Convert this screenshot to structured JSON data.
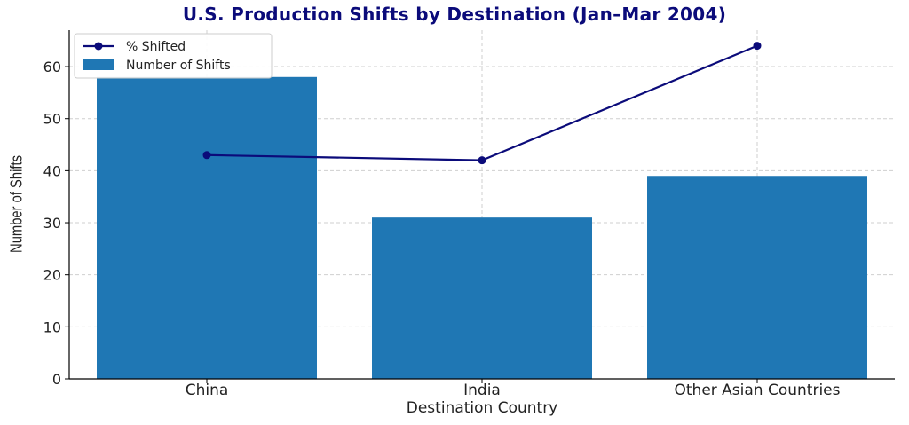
{
  "chart_data": {
    "type": "bar",
    "title": "U.S. Production Shifts by Destination (Jan–Mar 2004)",
    "xlabel": "Destination Country",
    "ylabel": "Number of Shifts",
    "categories": [
      "China",
      "India",
      "Other Asian Countries"
    ],
    "series": [
      {
        "name": "Number of Shifts",
        "type": "bar",
        "values": [
          58,
          31,
          39
        ],
        "color": "#1f77b4"
      },
      {
        "name": "% Shifted",
        "type": "line",
        "values": [
          43,
          42,
          64
        ],
        "color": "#0b0b7a"
      }
    ],
    "ylim": [
      0,
      67
    ],
    "yticks": [
      0,
      10,
      20,
      30,
      40,
      50,
      60
    ],
    "grid": true,
    "legend_position": "top-left"
  }
}
